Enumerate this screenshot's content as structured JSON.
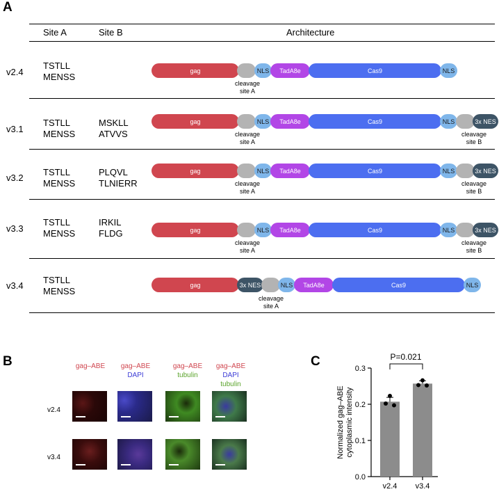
{
  "panel_a": {
    "letter": "A",
    "headers": {
      "site_a": "Site A",
      "site_b": "Site B",
      "architecture": "Architecture"
    },
    "rows": [
      {
        "version": "v2.4",
        "site_a": [
          "TSTLL",
          "MENSS"
        ],
        "site_b": []
      },
      {
        "version": "v3.1",
        "site_a": [
          "TSTLL",
          "MENSS"
        ],
        "site_b": [
          "MSKLL",
          "ATVVS"
        ]
      },
      {
        "version": "v3.2",
        "site_a": [
          "TSTLL",
          "MENSS"
        ],
        "site_b": [
          "PLQVL",
          "TLNIERR"
        ]
      },
      {
        "version": "v3.3",
        "site_a": [
          "TSTLL",
          "MENSS"
        ],
        "site_b": [
          "IRKIL",
          "FLDG"
        ]
      },
      {
        "version": "v3.4",
        "site_a": [
          "TSTLL",
          "MENSS"
        ],
        "site_b": []
      }
    ],
    "segment_labels": {
      "gag": "gag",
      "nls": "NLS",
      "tada8e": "TadA8e",
      "cas9": "Cas9",
      "nes": "3x NES"
    },
    "cleavage_labels": {
      "a": [
        "cleavage",
        "site A"
      ],
      "b": [
        "cleavage",
        "site B"
      ]
    },
    "colors": {
      "gag": "#d0464f",
      "cleavage": "#b3b3b3",
      "nls": "#7fb6ea",
      "tada8e": "#b246e6",
      "cas9": "#4c6ef0",
      "nes": "#3d5466"
    }
  },
  "panel_b": {
    "letter": "B",
    "columns": [
      {
        "lines": [
          {
            "text": "gag–ABE",
            "color": "#d0464f"
          }
        ]
      },
      {
        "lines": [
          {
            "text": "gag–ABE",
            "color": "#d0464f"
          },
          {
            "text": "DAPI",
            "color": "#3b3bd6"
          }
        ]
      },
      {
        "lines": [
          {
            "text": "gag–ABE",
            "color": "#d0464f"
          },
          {
            "text": "tubulin",
            "color": "#5aa32a"
          }
        ]
      },
      {
        "lines": [
          {
            "text": "gag–ABE",
            "color": "#d0464f"
          },
          {
            "text": "DAPI",
            "color": "#3b3bd6"
          },
          {
            "text": "tubulin",
            "color": "#5aa32a"
          }
        ]
      }
    ],
    "rows": [
      "v2.4",
      "v3.4"
    ]
  },
  "panel_c": {
    "letter": "C",
    "annotation": "P=0.021",
    "chart_data": {
      "type": "bar",
      "categories": [
        "v2.4",
        "v3.4"
      ],
      "values": [
        0.207,
        0.257
      ],
      "error": [
        0.012,
        0.008
      ],
      "points": [
        [
          0.223,
          0.202,
          0.197
        ],
        [
          0.266,
          0.253,
          0.252
        ]
      ],
      "ylabel": "Normalized gag–ABE cytoplasmic intensity",
      "ylabel_lines": [
        "Normalized gag–ABE",
        "cytoplasmic intensity"
      ],
      "ylim": [
        0,
        0.3
      ],
      "yticks": [
        "0.0",
        "0.1",
        "0.2",
        "0.3"
      ],
      "bar_color": "#8c8c8c"
    }
  }
}
